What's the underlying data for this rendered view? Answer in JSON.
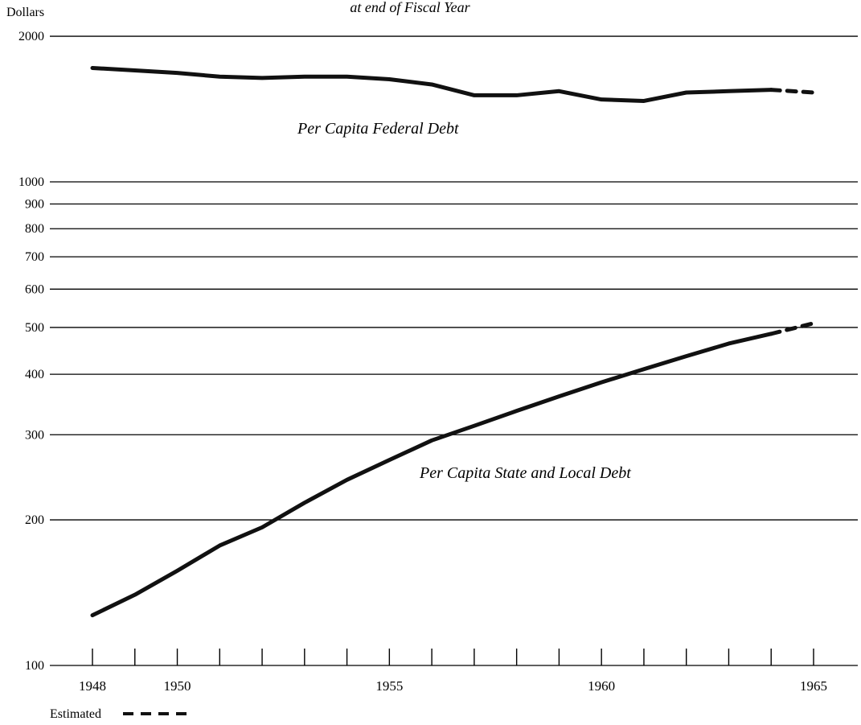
{
  "chart_data": {
    "type": "line",
    "title": "at end of Fiscal Year",
    "ylabel": "Dollars",
    "yscale": "log",
    "ylim": [
      100,
      2000
    ],
    "yticks": [
      {
        "value": 100,
        "label": "100"
      },
      {
        "value": 200,
        "label": "200"
      },
      {
        "value": 300,
        "label": "300"
      },
      {
        "value": 400,
        "label": "400"
      },
      {
        "value": 500,
        "label": "500"
      },
      {
        "value": 600,
        "label": "600"
      },
      {
        "value": 700,
        "label": "700"
      },
      {
        "value": 800,
        "label": "800"
      },
      {
        "value": 900,
        "label": "900"
      },
      {
        "value": 1000,
        "label": "1000"
      },
      {
        "value": 2000,
        "label": "2000"
      }
    ],
    "xlim": [
      1948,
      1965
    ],
    "xticks": [
      1948,
      1949,
      1950,
      1951,
      1952,
      1953,
      1954,
      1955,
      1956,
      1957,
      1958,
      1959,
      1960,
      1961,
      1962,
      1963,
      1964,
      1965
    ],
    "xticklabels": [
      {
        "value": 1948,
        "label": "1948"
      },
      {
        "value": 1950,
        "label": "1950"
      },
      {
        "value": 1955,
        "label": "1955"
      },
      {
        "value": 1960,
        "label": "1960"
      },
      {
        "value": 1965,
        "label": "1965"
      }
    ],
    "grid": true,
    "series": [
      {
        "name": "Per Capita Federal Debt",
        "x": [
          1948,
          1949,
          1950,
          1951,
          1952,
          1953,
          1954,
          1955,
          1956,
          1957,
          1958,
          1959,
          1960,
          1961,
          1962,
          1963,
          1964,
          1965
        ],
        "values": [
          1720,
          1700,
          1680,
          1650,
          1640,
          1650,
          1650,
          1630,
          1590,
          1510,
          1510,
          1540,
          1480,
          1470,
          1530,
          1540,
          1550,
          1530
        ],
        "estimated_from": 1964,
        "color": "#111111"
      },
      {
        "name": "Per Capita State and Local Debt",
        "x": [
          1948,
          1949,
          1950,
          1951,
          1952,
          1953,
          1954,
          1955,
          1956,
          1957,
          1958,
          1959,
          1960,
          1961,
          1962,
          1963,
          1964,
          1965
        ],
        "values": [
          127,
          140,
          157,
          177,
          193,
          217,
          242,
          266,
          292,
          313,
          336,
          360,
          385,
          410,
          436,
          463,
          485,
          510
        ],
        "estimated_from": 1964,
        "color": "#111111"
      }
    ],
    "legend": {
      "label": "Estimated",
      "position": "bottom-left"
    }
  }
}
